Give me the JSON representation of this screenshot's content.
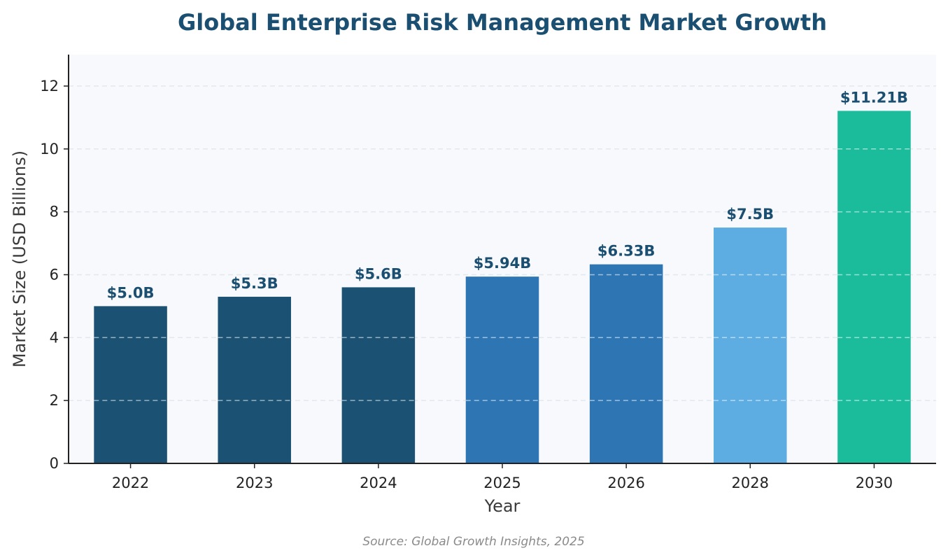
{
  "chart_data": {
    "type": "bar",
    "title": "Global Enterprise Risk Management Market Growth",
    "xlabel": "Year",
    "ylabel": "Market Size (USD Billions)",
    "categories": [
      "2022",
      "2023",
      "2024",
      "2025",
      "2026",
      "2028",
      "2030"
    ],
    "values": [
      5.0,
      5.3,
      5.6,
      5.94,
      6.33,
      7.5,
      11.21
    ],
    "data_labels": [
      "$5.0B",
      "$5.3B",
      "$5.6B",
      "$5.94B",
      "$6.33B",
      "$7.5B",
      "$11.21B"
    ],
    "bar_colors": [
      "#1b5273",
      "#1b5273",
      "#1b5273",
      "#2e75b4",
      "#2e75b4",
      "#5dade2",
      "#1abc9c"
    ],
    "ylim": [
      0,
      13
    ],
    "yticks": [
      0,
      2,
      4,
      6,
      8,
      10,
      12
    ],
    "grid": true,
    "legend": "none"
  },
  "source": "Source: Global Growth Insights, 2025",
  "colors": {
    "title": "#1b4f72",
    "data_label": "#1b4f72",
    "plot_background": "#f8f9fc",
    "gridline": "#e3e8ee",
    "axis": "#222222"
  }
}
